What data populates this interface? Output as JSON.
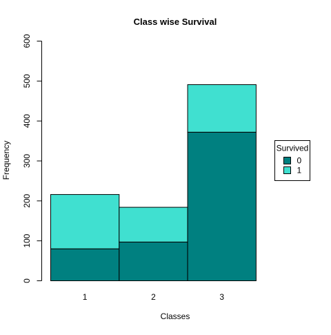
{
  "chart_data": {
    "type": "bar",
    "stacked": true,
    "title": "Class wise Survival",
    "xlabel": "Classes",
    "ylabel": "Frequency",
    "categories": [
      "1",
      "2",
      "3"
    ],
    "ylim": [
      0,
      600
    ],
    "yticks": [
      0,
      100,
      200,
      300,
      400,
      500,
      600
    ],
    "series": [
      {
        "name": "0",
        "values": [
          80,
          97,
          372
        ],
        "color": "#008080"
      },
      {
        "name": "1",
        "values": [
          136,
          87,
          119
        ],
        "color": "#40E0D0"
      }
    ],
    "legend": {
      "title": "Survived",
      "labels": [
        "0",
        "1"
      ],
      "position": "right"
    },
    "grid": false
  }
}
